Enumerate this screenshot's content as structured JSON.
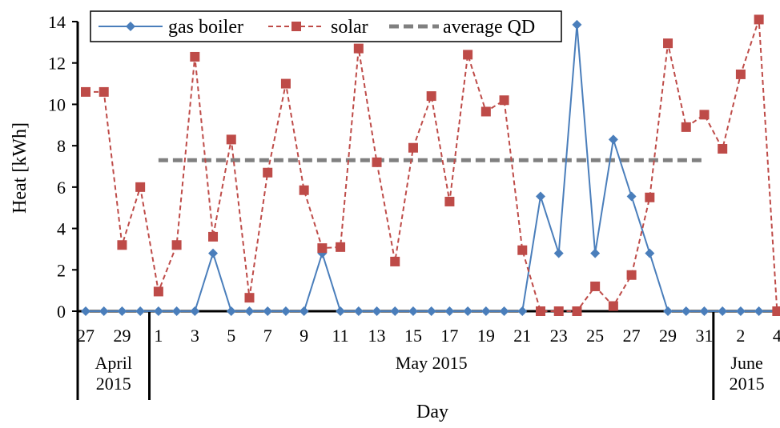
{
  "chart_data": {
    "type": "line",
    "title": "",
    "xlabel": "Day",
    "ylabel": "Heat [kWh]",
    "ylim": [
      0,
      14
    ],
    "yticks": [
      0,
      2,
      4,
      6,
      8,
      10,
      12,
      14
    ],
    "grid": false,
    "legend_position": "top",
    "x": [
      "27 Apr",
      "28 Apr",
      "29 Apr",
      "30 Apr",
      "1 May",
      "2 May",
      "3 May",
      "4 May",
      "5 May",
      "6 May",
      "7 May",
      "8 May",
      "9 May",
      "10 May",
      "11 May",
      "12 May",
      "13 May",
      "14 May",
      "15 May",
      "16 May",
      "17 May",
      "18 May",
      "19 May",
      "20 May",
      "21 May",
      "22 May",
      "23 May",
      "24 May",
      "25 May",
      "26 May",
      "27 May",
      "28 May",
      "29 May",
      "30 May",
      "31 May",
      "1 Jun",
      "2 Jun",
      "3 Jun",
      "4 Jun"
    ],
    "tick_labels": [
      "27",
      "29",
      "1",
      "3",
      "5",
      "7",
      "9",
      "11",
      "13",
      "15",
      "17",
      "19",
      "21",
      "23",
      "25",
      "27",
      "29",
      "31",
      "2",
      "4"
    ],
    "tick_label_days": [
      "27 Apr",
      "29 Apr",
      "1 May",
      "3 May",
      "5 May",
      "7 May",
      "9 May",
      "11 May",
      "13 May",
      "15 May",
      "17 May",
      "19 May",
      "21 May",
      "23 May",
      "25 May",
      "27 May",
      "29 May",
      "31 May",
      "2 Jun",
      "4 Jun"
    ],
    "months": [
      {
        "line1": "April",
        "line2": "2015",
        "from": "27 Apr",
        "to": "30 Apr"
      },
      {
        "line1": "May 2015",
        "line2": "",
        "from": "1 May",
        "to": "31 May"
      },
      {
        "line1": "June",
        "line2": "2015",
        "from": "1 Jun",
        "to": "4 Jun"
      }
    ],
    "series": [
      {
        "name": "gas boiler",
        "color": "#4a7ebb",
        "marker": "diamond",
        "line_style": "solid",
        "values": [
          0,
          0,
          0,
          0,
          0,
          0,
          0,
          2.8,
          0,
          0,
          0,
          0,
          0,
          2.8,
          0,
          0,
          0,
          0,
          0,
          0,
          0,
          0,
          0,
          0,
          0,
          5.55,
          2.8,
          13.85,
          2.8,
          8.3,
          5.55,
          2.8,
          0,
          0,
          0,
          0,
          0,
          0,
          0
        ]
      },
      {
        "name": "solar",
        "color": "#be4b48",
        "marker": "square",
        "line_style": "dashed",
        "values": [
          10.6,
          10.6,
          3.2,
          6.0,
          0.95,
          3.2,
          12.3,
          3.6,
          8.3,
          0.65,
          6.7,
          11.0,
          5.85,
          3.05,
          3.1,
          12.7,
          7.2,
          2.4,
          7.9,
          10.4,
          5.3,
          12.4,
          9.65,
          10.2,
          2.95,
          0.0,
          0.0,
          0.0,
          1.2,
          0.25,
          1.75,
          5.5,
          12.95,
          8.9,
          9.5,
          7.85,
          11.45,
          14.1,
          0.0
        ]
      },
      {
        "name": "average QD",
        "color": "#808080",
        "marker": "none",
        "line_style": "dashed-thick",
        "from": "1 May",
        "to": "31 May",
        "value": 7.3
      }
    ]
  }
}
